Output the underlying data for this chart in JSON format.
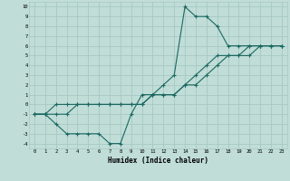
{
  "title": "",
  "xlabel": "Humidex (Indice chaleur)",
  "xlim": [
    -0.5,
    23.5
  ],
  "ylim": [
    -4.5,
    10.5
  ],
  "xticks": [
    0,
    1,
    2,
    3,
    4,
    5,
    6,
    7,
    8,
    9,
    10,
    11,
    12,
    13,
    14,
    15,
    16,
    17,
    18,
    19,
    20,
    21,
    22,
    23
  ],
  "yticks": [
    -4,
    -3,
    -2,
    -1,
    0,
    1,
    2,
    3,
    4,
    5,
    6,
    7,
    8,
    9,
    10
  ],
  "bg_color": "#c0ddd8",
  "grid_color": "#a8c8c4",
  "line_color": "#1a6860",
  "line1_x": [
    0,
    1,
    2,
    3,
    4,
    5,
    6,
    7,
    8,
    9,
    10,
    11,
    12,
    13,
    14,
    15,
    16,
    17,
    18,
    19,
    20,
    21,
    22,
    23
  ],
  "line1_y": [
    -1,
    -1,
    -2,
    -3,
    -3,
    -3,
    -3,
    -4,
    -4,
    -1,
    1,
    1,
    2,
    3,
    10,
    9,
    9,
    8,
    6,
    6,
    6,
    6,
    6,
    6
  ],
  "line2_x": [
    0,
    1,
    2,
    3,
    4,
    5,
    6,
    7,
    8,
    9,
    10,
    11,
    12,
    13,
    14,
    15,
    16,
    17,
    18,
    19,
    20,
    21,
    22,
    23
  ],
  "line2_y": [
    -1,
    -1,
    -1,
    -1,
    0,
    0,
    0,
    0,
    0,
    0,
    0,
    1,
    1,
    1,
    2,
    2,
    3,
    4,
    5,
    5,
    5,
    6,
    6,
    6
  ],
  "line3_x": [
    0,
    1,
    2,
    3,
    4,
    5,
    6,
    7,
    8,
    9,
    10,
    11,
    12,
    13,
    14,
    15,
    16,
    17,
    18,
    19,
    20,
    21,
    22,
    23
  ],
  "line3_y": [
    -1,
    -1,
    0,
    0,
    0,
    0,
    0,
    0,
    0,
    0,
    0,
    1,
    1,
    1,
    2,
    3,
    4,
    5,
    5,
    5,
    6,
    6,
    6,
    6
  ]
}
